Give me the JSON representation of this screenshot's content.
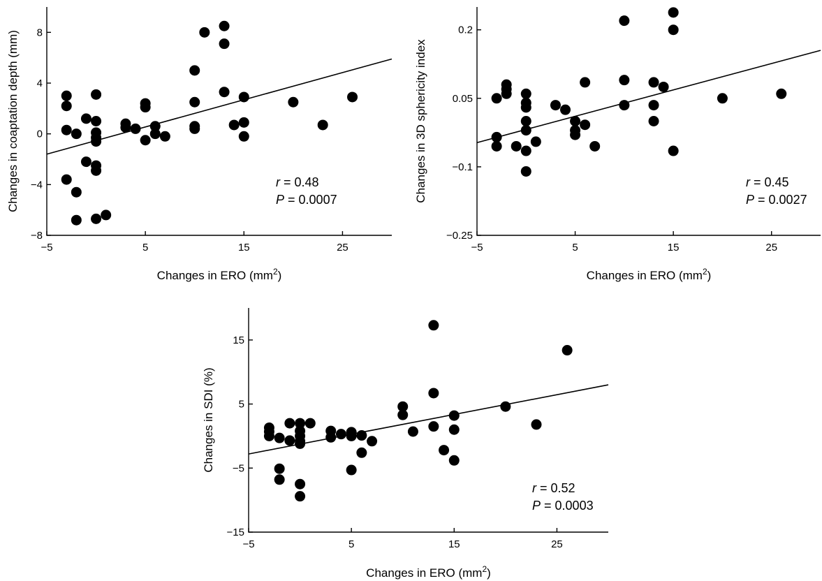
{
  "chart_data": [
    {
      "type": "scatter",
      "xlabel": "Changes in ERO (mm",
      "xlabel_sup": "2",
      "xlabel_close": ")",
      "ylabel": "Changes in coaptation depth (mm)",
      "xticks": [
        "−5",
        "5",
        "15",
        "25"
      ],
      "xtick_values": [
        -5,
        5,
        15,
        25
      ],
      "yticks": [
        "−8",
        "−4",
        "0",
        "4",
        "8"
      ],
      "ytick_values": [
        -8,
        -4,
        0,
        4,
        8
      ],
      "xlim": [
        -5,
        30
      ],
      "ylim": [
        -8,
        10
      ],
      "stat_r_symbol": "r",
      "stat_r_value": " = 0.48",
      "stat_p_symbol": "P",
      "stat_p_value": " = 0.0007",
      "fit_line": {
        "x": [
          -5,
          30
        ],
        "y": [
          -1.6,
          5.9
        ]
      },
      "points": [
        [
          -3,
          3.0
        ],
        [
          -3,
          2.2
        ],
        [
          -3,
          0.3
        ],
        [
          -3,
          -3.6
        ],
        [
          -2,
          0.0
        ],
        [
          -2,
          -4.6
        ],
        [
          -2,
          -6.8
        ],
        [
          -1,
          1.2
        ],
        [
          -1,
          -2.2
        ],
        [
          0,
          3.1
        ],
        [
          0,
          1.0
        ],
        [
          0,
          0.1
        ],
        [
          0,
          -0.3
        ],
        [
          0,
          -0.6
        ],
        [
          0,
          -2.5
        ],
        [
          0,
          -2.9
        ],
        [
          0,
          -6.7
        ],
        [
          1,
          -6.4
        ],
        [
          3,
          0.8
        ],
        [
          3,
          0.5
        ],
        [
          4,
          0.4
        ],
        [
          5,
          2.4
        ],
        [
          5,
          2.1
        ],
        [
          5,
          -0.5
        ],
        [
          6,
          0.6
        ],
        [
          6,
          0.0
        ],
        [
          7,
          -0.2
        ],
        [
          10,
          5.0
        ],
        [
          10,
          2.5
        ],
        [
          10,
          0.6
        ],
        [
          10,
          0.4
        ],
        [
          11,
          8.0
        ],
        [
          13,
          8.5
        ],
        [
          13,
          7.1
        ],
        [
          13,
          3.3
        ],
        [
          14,
          0.7
        ],
        [
          15,
          2.9
        ],
        [
          15,
          0.9
        ],
        [
          15,
          -0.2
        ],
        [
          20,
          2.5
        ],
        [
          23,
          0.7
        ],
        [
          26,
          2.9
        ]
      ]
    },
    {
      "type": "scatter",
      "xlabel": "Changes in ERO (mm",
      "xlabel_sup": "2",
      "xlabel_close": ")",
      "ylabel": "Changes in 3D sphericity index",
      "xticks": [
        "−5",
        "5",
        "15",
        "25"
      ],
      "xtick_values": [
        -5,
        5,
        15,
        25
      ],
      "yticks": [
        "−0.25",
        "−0.1",
        "0.05",
        "0.2"
      ],
      "ytick_values": [
        -0.25,
        -0.1,
        0.05,
        0.2
      ],
      "xlim": [
        -5,
        30
      ],
      "ylim": [
        -0.25,
        0.25
      ],
      "stat_r_symbol": "r",
      "stat_r_value": " = 0.45",
      "stat_p_symbol": "P",
      "stat_p_value": " = 0.0027",
      "fit_line": {
        "x": [
          -5,
          30
        ],
        "y": [
          -0.047,
          0.155
        ]
      },
      "points": [
        [
          -3,
          0.05
        ],
        [
          -3,
          -0.035
        ],
        [
          -3,
          -0.055
        ],
        [
          -2,
          0.08
        ],
        [
          -2,
          0.07
        ],
        [
          -2,
          0.06
        ],
        [
          -1,
          -0.055
        ],
        [
          0,
          0.06
        ],
        [
          0,
          0.03
        ],
        [
          0,
          0.04
        ],
        [
          0,
          0.0
        ],
        [
          0,
          -0.02
        ],
        [
          0,
          -0.065
        ],
        [
          0,
          -0.11
        ],
        [
          1,
          -0.045
        ],
        [
          3,
          0.035
        ],
        [
          4,
          0.025
        ],
        [
          5,
          0.0
        ],
        [
          5,
          -0.02
        ],
        [
          5,
          -0.03
        ],
        [
          6,
          0.085
        ],
        [
          6,
          -0.008
        ],
        [
          7,
          -0.055
        ],
        [
          10,
          0.22
        ],
        [
          10,
          0.09
        ],
        [
          10,
          0.035
        ],
        [
          13,
          0.085
        ],
        [
          13,
          0.035
        ],
        [
          13,
          0.0
        ],
        [
          14,
          0.075
        ],
        [
          15,
          0.238
        ],
        [
          15,
          0.2
        ],
        [
          15,
          -0.065
        ],
        [
          20,
          0.05
        ],
        [
          26,
          0.06
        ]
      ]
    },
    {
      "type": "scatter",
      "xlabel": "Changes in ERO (mm",
      "xlabel_sup": "2",
      "xlabel_close": ")",
      "ylabel": "Changes in SDI (%)",
      "xticks": [
        "−5",
        "5",
        "15",
        "25"
      ],
      "xtick_values": [
        -5,
        5,
        15,
        25
      ],
      "yticks": [
        "−15",
        "−5",
        "5",
        "15"
      ],
      "ytick_values": [
        -15,
        -5,
        5,
        15
      ],
      "xlim": [
        -5,
        30
      ],
      "ylim": [
        -15,
        20
      ],
      "stat_r_symbol": "r",
      "stat_r_value": " = 0.52",
      "stat_p_symbol": "P",
      "stat_p_value": " = 0.0003",
      "fit_line": {
        "x": [
          -5,
          30
        ],
        "y": [
          -2.8,
          8.0
        ]
      },
      "points": [
        [
          -3,
          1.3
        ],
        [
          -3,
          0.7
        ],
        [
          -3,
          0.0
        ],
        [
          -2,
          -0.3
        ],
        [
          -2,
          -5.1
        ],
        [
          -2,
          -6.8
        ],
        [
          -1,
          2.0
        ],
        [
          -1,
          -0.7
        ],
        [
          0,
          2.0
        ],
        [
          0,
          0.8
        ],
        [
          0,
          0.0
        ],
        [
          0,
          -0.8
        ],
        [
          0,
          -1.2
        ],
        [
          0,
          -7.5
        ],
        [
          0,
          -9.4
        ],
        [
          1,
          2.0
        ],
        [
          3,
          0.8
        ],
        [
          3,
          -0.2
        ],
        [
          4,
          0.3
        ],
        [
          5,
          0.6
        ],
        [
          5,
          0.0
        ],
        [
          5,
          -5.3
        ],
        [
          6,
          0.1
        ],
        [
          6,
          -2.6
        ],
        [
          7,
          -0.8
        ],
        [
          10,
          4.6
        ],
        [
          10,
          3.3
        ],
        [
          11,
          0.7
        ],
        [
          13,
          17.3
        ],
        [
          13,
          6.7
        ],
        [
          13,
          1.5
        ],
        [
          14,
          -2.2
        ],
        [
          15,
          3.2
        ],
        [
          15,
          1.0
        ],
        [
          15,
          -3.8
        ],
        [
          20,
          4.6
        ],
        [
          23,
          1.8
        ],
        [
          26,
          13.4
        ]
      ]
    }
  ]
}
